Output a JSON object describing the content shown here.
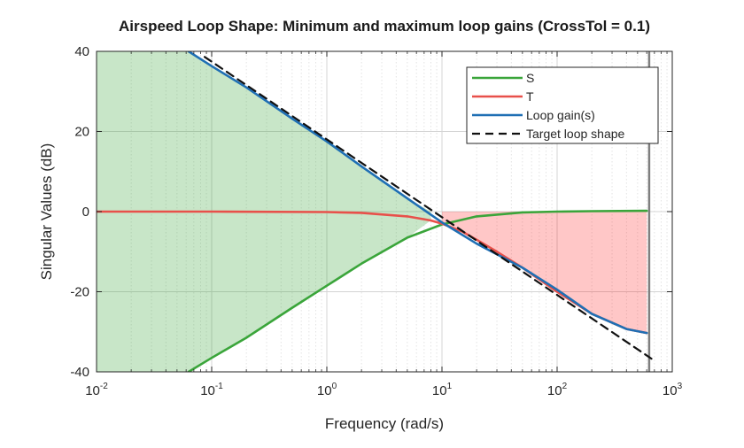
{
  "chart_data": {
    "type": "line",
    "title": "Airspeed Loop Shape: Minimum and maximum loop gains (CrossTol = 0.1)",
    "xlabel": "Frequency (rad/s)",
    "ylabel": "Singular Values (dB)",
    "x_scale": "log",
    "xlim": [
      0.01,
      1000
    ],
    "ylim": [
      -40,
      40
    ],
    "x_ticks": [
      {
        "value": 0.01,
        "base": "10",
        "exp": "-2"
      },
      {
        "value": 0.1,
        "base": "10",
        "exp": "-1"
      },
      {
        "value": 1,
        "base": "10",
        "exp": "0"
      },
      {
        "value": 10,
        "base": "10",
        "exp": "1"
      },
      {
        "value": 100,
        "base": "10",
        "exp": "2"
      },
      {
        "value": 1000,
        "base": "10",
        "exp": "3"
      }
    ],
    "y_ticks": [
      {
        "value": 40,
        "label": "40"
      },
      {
        "value": 20,
        "label": "20"
      },
      {
        "value": 0,
        "label": "0"
      },
      {
        "value": -20,
        "label": "-20"
      },
      {
        "value": -40,
        "label": "-40"
      }
    ],
    "grid": true,
    "legend": "top-right",
    "series": [
      {
        "name": "S",
        "color": "#3aa53a",
        "x": [
          0.063,
          0.1,
          0.2,
          0.5,
          1,
          2,
          5,
          10,
          20,
          50,
          100,
          200,
          600
        ],
        "y": [
          -40,
          -36.5,
          -31.5,
          -24,
          -18.5,
          -13,
          -6.5,
          -3.2,
          -1.2,
          -0.2,
          0,
          0.1,
          0.2
        ]
      },
      {
        "name": "T",
        "color": "#e8504a",
        "x": [
          0.01,
          0.1,
          1,
          2,
          5,
          8,
          10,
          15,
          20,
          30,
          50,
          100,
          200,
          400,
          600
        ],
        "y": [
          0,
          0,
          -0.1,
          -0.3,
          -1.2,
          -2.2,
          -3,
          -5,
          -7,
          -10,
          -14,
          -20,
          -25.5,
          -29.3,
          -30.3
        ]
      },
      {
        "name": "Loop gain(s)",
        "color": "#1f6fb4",
        "x": [
          0.063,
          0.1,
          0.2,
          0.5,
          1,
          2,
          5,
          10,
          20,
          50,
          100,
          200,
          400,
          600
        ],
        "y": [
          40,
          36.3,
          31,
          23.2,
          17.5,
          11.3,
          3.3,
          -2.7,
          -8,
          -14,
          -19.5,
          -25.5,
          -29.3,
          -30.3
        ]
      },
      {
        "name": "Target loop shape",
        "color": "#111111",
        "x": [
          0.087,
          660
        ],
        "y": [
          38.6,
          -36.7
        ]
      }
    ],
    "vertical_line": {
      "x": 630,
      "color": "#7f7f7f"
    },
    "shaded_regions": [
      {
        "color": "#3aa53a",
        "opacity": 0.28,
        "x_upper": [
          0.01,
          0.063,
          0.1,
          0.2,
          0.5,
          1,
          2,
          5,
          8
        ],
        "y_upper": [
          40,
          40,
          36.3,
          31,
          23.2,
          17.5,
          11.3,
          3.3,
          0
        ],
        "x_lower": [
          8,
          5,
          2,
          1,
          0.5,
          0.2,
          0.1,
          0.063,
          0.01
        ],
        "y_lower": [
          -2.2,
          -6.5,
          -13,
          -18.5,
          -24,
          -31.5,
          -36.5,
          -40,
          -40
        ]
      },
      {
        "color": "#ff0000",
        "opacity": 0.22,
        "x_upper": [
          10,
          20,
          50,
          100,
          200,
          600
        ],
        "y_upper": [
          0,
          0,
          0,
          0,
          0,
          0
        ],
        "x_lower": [
          600,
          400,
          200,
          100,
          50,
          30,
          20,
          15,
          10
        ],
        "y_lower": [
          -30.3,
          -29.3,
          -25.5,
          -20,
          -14,
          -10,
          -7,
          -5,
          -3
        ]
      }
    ]
  }
}
